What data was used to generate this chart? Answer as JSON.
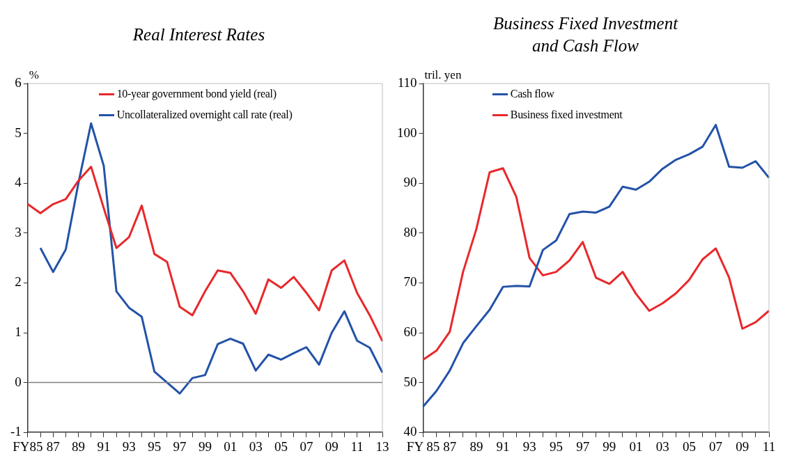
{
  "chart_data": [
    {
      "type": "line",
      "title": "Real Interest Rates",
      "ylabel": "%",
      "categories": [
        "FY85",
        null,
        "87",
        null,
        "89",
        null,
        "91",
        null,
        "93",
        null,
        "95",
        null,
        "97",
        null,
        "99",
        null,
        "01",
        null,
        "03",
        null,
        "05",
        null,
        "07",
        null,
        "09",
        null,
        "11",
        null,
        "13"
      ],
      "series": [
        {
          "name": "10-year government bond yield (real)",
          "color": "#e8282b",
          "values": [
            3.58,
            3.4,
            3.58,
            3.68,
            4.05,
            4.33,
            3.5,
            2.7,
            2.92,
            3.55,
            2.58,
            2.42,
            1.52,
            1.35,
            1.83,
            2.25,
            2.2,
            1.83,
            1.38,
            2.07,
            1.9,
            2.12,
            1.8,
            1.45,
            2.25,
            2.45,
            1.8,
            1.35,
            0.83
          ]
        },
        {
          "name": "Uncollateralized overnight call rate (real)",
          "color": "#2352a8",
          "values": [
            null,
            2.7,
            2.22,
            2.67,
            4.0,
            5.2,
            4.35,
            1.83,
            1.5,
            1.32,
            0.22,
            0.0,
            -0.22,
            0.09,
            0.15,
            0.77,
            0.88,
            0.78,
            0.24,
            0.56,
            0.46,
            0.59,
            0.71,
            0.36,
            1.0,
            1.43,
            0.84,
            0.7,
            0.2
          ]
        }
      ],
      "ylim": [
        -1,
        6
      ],
      "yticks": [
        -1,
        0,
        1,
        2,
        3,
        4,
        5,
        6
      ],
      "ref_lines": [
        {
          "axis": "y",
          "value": 0,
          "color": "#7f7f7f"
        }
      ],
      "grid": false,
      "legend": "top left",
      "marker": "none",
      "line_style": "solid"
    },
    {
      "type": "line",
      "title": "Business Fixed Investment and Cash Flow",
      "ylabel": "tril. yen",
      "categories": [
        "FY 85",
        null,
        "87",
        null,
        "89",
        null,
        "91",
        null,
        "93",
        null,
        "95",
        null,
        "97",
        null,
        "99",
        null,
        "01",
        null,
        "03",
        null,
        "05",
        null,
        "07",
        null,
        "09",
        null,
        "11"
      ],
      "series": [
        {
          "name": "Cash flow",
          "color": "#2352a8",
          "values": [
            45.2,
            48.3,
            52.4,
            57.9,
            61.3,
            64.6,
            69.2,
            69.4,
            69.3,
            76.6,
            78.5,
            83.8,
            84.3,
            84.1,
            85.3,
            89.3,
            88.7,
            90.3,
            92.9,
            94.7,
            95.8,
            97.3,
            101.7,
            93.3,
            93.1,
            94.4,
            91.1
          ]
        },
        {
          "name": "Business fixed investment",
          "color": "#e8282b",
          "values": [
            54.6,
            56.4,
            60.2,
            72.2,
            80.8,
            92.2,
            93.0,
            87.3,
            75.0,
            71.5,
            72.2,
            74.5,
            78.2,
            71.0,
            69.8,
            72.2,
            67.8,
            64.4,
            65.9,
            67.9,
            70.6,
            74.7,
            76.9,
            71.1,
            60.8,
            62.1,
            64.4
          ]
        }
      ],
      "ylim": [
        40,
        110
      ],
      "yticks": [
        40,
        50,
        60,
        70,
        80,
        90,
        100,
        110
      ],
      "grid": false,
      "legend": "top left",
      "marker": "none",
      "line_style": "solid"
    }
  ]
}
